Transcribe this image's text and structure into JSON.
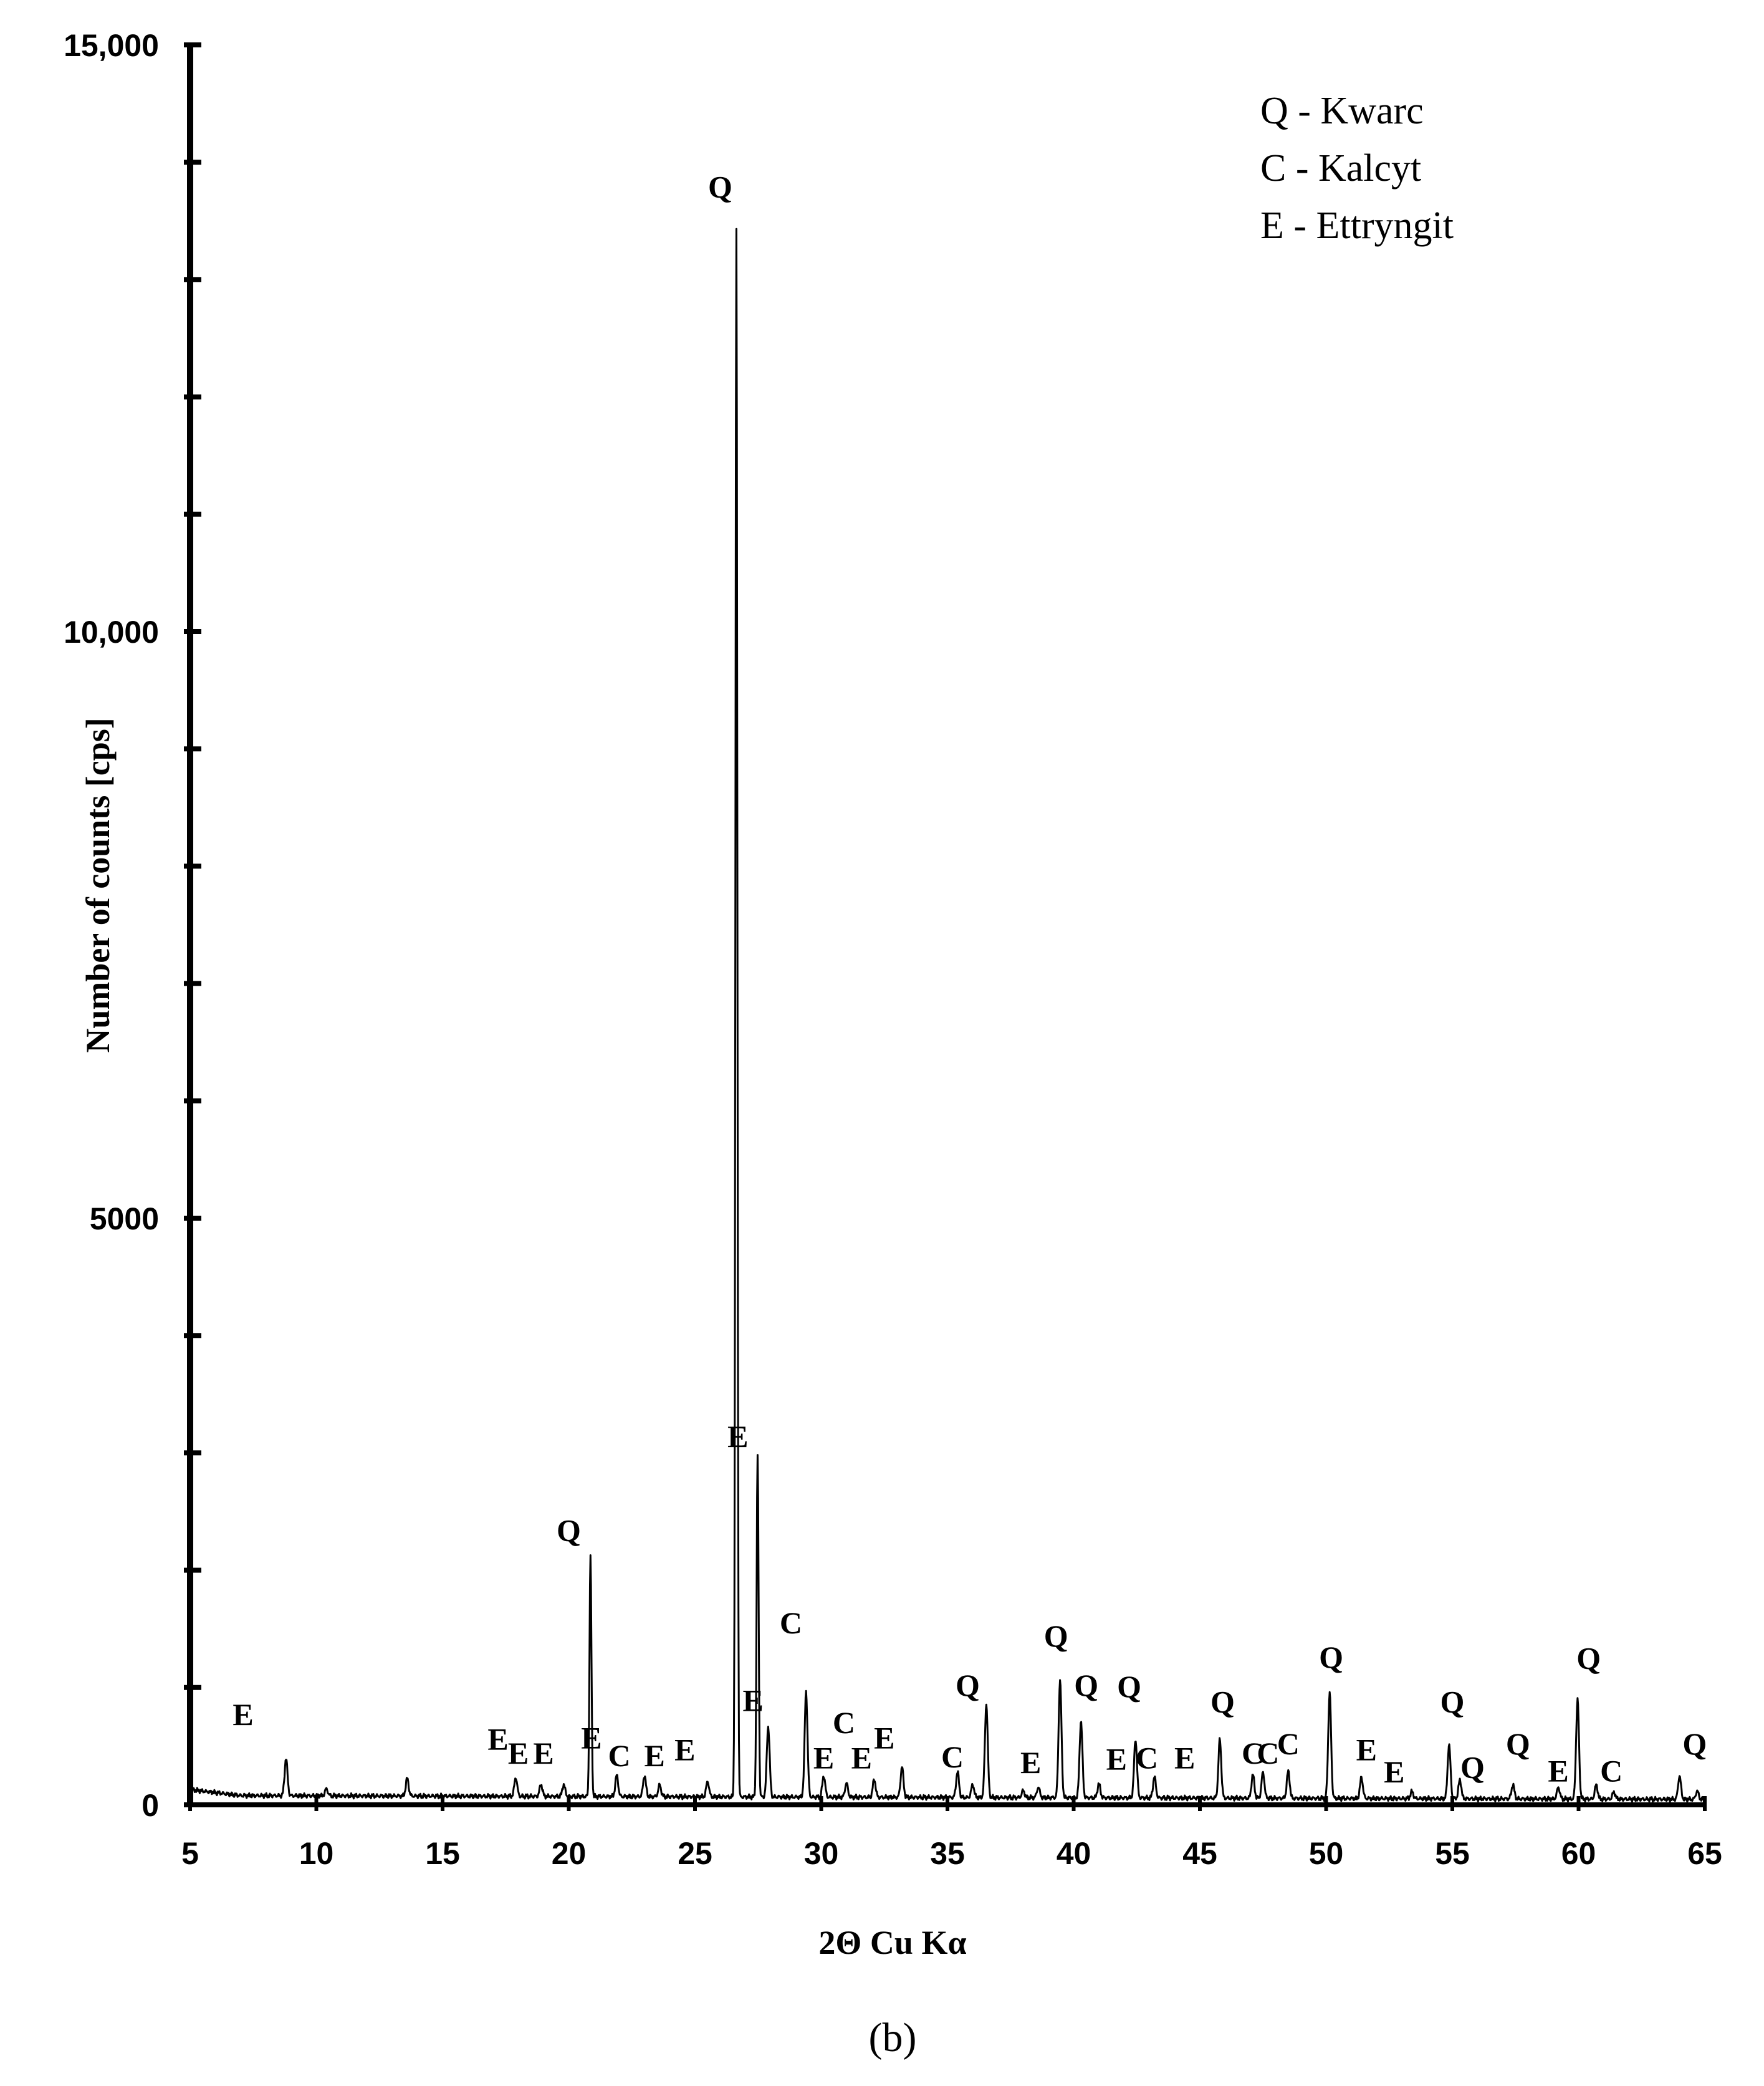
{
  "chart_data": {
    "type": "line",
    "xlabel": "2Θ Cu Kα",
    "ylabel": "Number of counts [cps]",
    "xlim": [
      5,
      65
    ],
    "ylim": [
      0,
      15000
    ],
    "x_ticks": [
      5,
      10,
      15,
      20,
      25,
      30,
      35,
      40,
      45,
      50,
      55,
      60,
      65
    ],
    "x_tick_labels": [
      "5",
      "10",
      "15",
      "20",
      "25",
      "30",
      "35",
      "40",
      "45",
      "50",
      "55",
      "60",
      "65"
    ],
    "y_ticks": [
      0,
      5000,
      10000,
      15000
    ],
    "y_tick_labels": [
      "0",
      "5000",
      "10,000",
      "15,000"
    ],
    "grid": false,
    "legend": {
      "position": "top-right",
      "entries": [
        "Q - Kwarc",
        "C - Kalcyt",
        "E - Ettryngit"
      ]
    },
    "caption": "(b)",
    "series": [
      {
        "peaks": [
          [
            8.8,
            320
          ],
          [
            10.4,
            60
          ],
          [
            13.6,
            150
          ],
          [
            17.9,
            160
          ],
          [
            18.9,
            100
          ],
          [
            19.8,
            100
          ],
          [
            20.86,
            2050
          ],
          [
            21.9,
            180
          ],
          [
            23.0,
            180
          ],
          [
            23.6,
            100
          ],
          [
            25.5,
            130
          ],
          [
            26.64,
            13350
          ],
          [
            27.48,
            2900
          ],
          [
            27.9,
            600
          ],
          [
            29.4,
            900
          ],
          [
            30.1,
            180
          ],
          [
            31.0,
            120
          ],
          [
            32.1,
            150
          ],
          [
            33.2,
            260
          ],
          [
            35.4,
            220
          ],
          [
            36.0,
            110
          ],
          [
            36.54,
            800
          ],
          [
            38.0,
            60
          ],
          [
            38.6,
            90
          ],
          [
            39.46,
            1000
          ],
          [
            40.29,
            650
          ],
          [
            41.0,
            120
          ],
          [
            42.45,
            500
          ],
          [
            43.2,
            180
          ],
          [
            45.79,
            500
          ],
          [
            47.1,
            200
          ],
          [
            47.5,
            220
          ],
          [
            48.5,
            230
          ],
          [
            50.14,
            900
          ],
          [
            51.4,
            180
          ],
          [
            53.4,
            60
          ],
          [
            54.87,
            460
          ],
          [
            55.3,
            160
          ],
          [
            57.4,
            120
          ],
          [
            59.2,
            100
          ],
          [
            59.96,
            850
          ],
          [
            60.7,
            120
          ],
          [
            61.4,
            60
          ],
          [
            64.0,
            200
          ],
          [
            64.7,
            70
          ]
        ]
      }
    ],
    "annotations": [
      {
        "text": "E",
        "x": 7.1,
        "y": 680
      },
      {
        "text": "E",
        "x": 17.2,
        "y": 470
      },
      {
        "text": "E",
        "x": 18.0,
        "y": 350
      },
      {
        "text": "E",
        "x": 19.0,
        "y": 350
      },
      {
        "text": "Q",
        "x": 20.0,
        "y": 2250
      },
      {
        "text": "E",
        "x": 20.9,
        "y": 480
      },
      {
        "text": "C",
        "x": 22.0,
        "y": 330
      },
      {
        "text": "E",
        "x": 23.4,
        "y": 330
      },
      {
        "text": "E",
        "x": 24.6,
        "y": 380
      },
      {
        "text": "Q",
        "x": 26.0,
        "y": 13700
      },
      {
        "text": "E",
        "x": 26.7,
        "y": 3050
      },
      {
        "text": "E",
        "x": 27.3,
        "y": 800
      },
      {
        "text": "C",
        "x": 28.8,
        "y": 1460
      },
      {
        "text": "C",
        "x": 30.9,
        "y": 610
      },
      {
        "text": "E",
        "x": 30.1,
        "y": 310
      },
      {
        "text": "E",
        "x": 31.6,
        "y": 310
      },
      {
        "text": "E",
        "x": 32.5,
        "y": 480
      },
      {
        "text": "C",
        "x": 35.2,
        "y": 320
      },
      {
        "text": "Q",
        "x": 35.8,
        "y": 930
      },
      {
        "text": "E",
        "x": 38.3,
        "y": 270
      },
      {
        "text": "Q",
        "x": 39.3,
        "y": 1350
      },
      {
        "text": "Q",
        "x": 40.5,
        "y": 930
      },
      {
        "text": "E",
        "x": 41.7,
        "y": 300
      },
      {
        "text": "Q",
        "x": 42.2,
        "y": 920
      },
      {
        "text": "C",
        "x": 42.9,
        "y": 310
      },
      {
        "text": "E",
        "x": 44.4,
        "y": 310
      },
      {
        "text": "Q",
        "x": 45.9,
        "y": 790
      },
      {
        "text": "C",
        "x": 47.1,
        "y": 350
      },
      {
        "text": "C",
        "x": 47.7,
        "y": 350
      },
      {
        "text": "C",
        "x": 48.5,
        "y": 430
      },
      {
        "text": "Q",
        "x": 50.2,
        "y": 1170
      },
      {
        "text": "E",
        "x": 51.6,
        "y": 380
      },
      {
        "text": "E",
        "x": 52.7,
        "y": 190
      },
      {
        "text": "Q",
        "x": 55.0,
        "y": 790
      },
      {
        "text": "Q",
        "x": 55.8,
        "y": 230
      },
      {
        "text": "Q",
        "x": 57.6,
        "y": 430
      },
      {
        "text": "E",
        "x": 59.2,
        "y": 200
      },
      {
        "text": "Q",
        "x": 60.4,
        "y": 1160
      },
      {
        "text": "C",
        "x": 61.3,
        "y": 200
      },
      {
        "text": "Q",
        "x": 64.6,
        "y": 430
      }
    ]
  }
}
